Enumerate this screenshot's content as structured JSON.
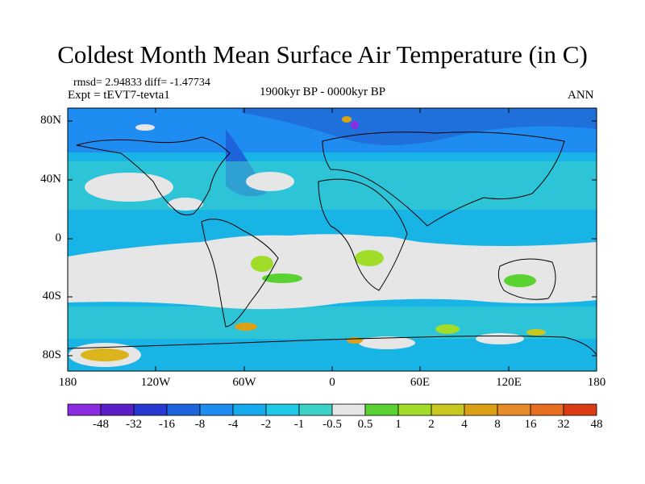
{
  "title": "Coldest Month Mean Surface Air Temperature (in C)",
  "stats": "rmsd= 2.94833 diff= -1.47734",
  "experiment": "Expt = tEVT7-tevta1",
  "period": "1900kyr BP - 0000kyr BP",
  "season": "ANN",
  "map": {
    "lat_ticks": [
      "80N",
      "40N",
      "0",
      "40S",
      "80S"
    ],
    "lon_ticks": [
      "180",
      "120W",
      "60W",
      "0",
      "60E",
      "120E",
      "180"
    ],
    "dominant_field": "cyan"
  },
  "colorbar": {
    "colors": [
      "#8a2be2",
      "#5a1ec8",
      "#2838d2",
      "#1e64dc",
      "#1e8cf0",
      "#14aaeb",
      "#1ec8e6",
      "#3cd2c8",
      "#e6e6e6",
      "#5ad232",
      "#a0dc28",
      "#c8c81e",
      "#dca014",
      "#e68c28",
      "#e66e1e",
      "#dc3c14"
    ],
    "labels": [
      "-48",
      "-32",
      "-16",
      "-8",
      "-4",
      "-2",
      "-1",
      "-0.5",
      "0.5",
      "1",
      "2",
      "4",
      "8",
      "16",
      "32",
      "48"
    ]
  }
}
